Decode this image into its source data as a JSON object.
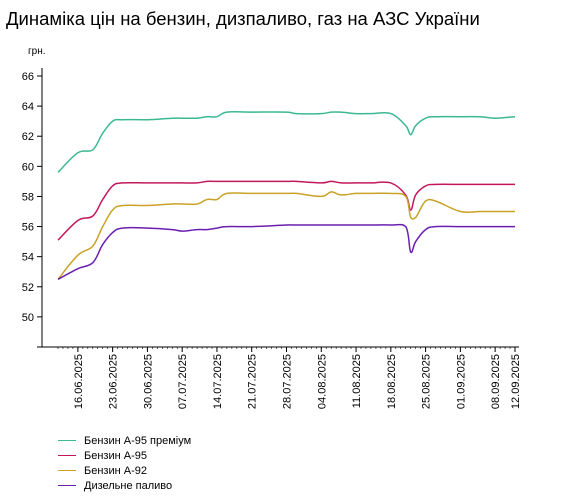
{
  "title": "Динаміка цін на бензин, дизпаливо, газ на АЗС України",
  "chart_data": {
    "type": "line",
    "title": "Динаміка цін на бензин, дизпаливо, газ на АЗС України",
    "ylabel": "грн.",
    "xlabel": "",
    "ylim": [
      48,
      66
    ],
    "yticks": [
      50,
      52,
      54,
      56,
      58,
      60,
      62,
      64,
      66
    ],
    "grid": false,
    "legend_position": "bottom-left",
    "x_start": "12.06.2025",
    "x_end": "12.09.2025",
    "x": [
      "12.06.2025",
      "16.06.2025",
      "19.06.2025",
      "21.06.2025",
      "23.06.2025",
      "25.06.2025",
      "30.06.2025",
      "05.07.2025",
      "07.07.2025",
      "10.07.2025",
      "12.07.2025",
      "14.07.2025",
      "16.07.2025",
      "21.07.2025",
      "28.07.2025",
      "30.07.2025",
      "04.08.2025",
      "06.08.2025",
      "08.08.2025",
      "11.08.2025",
      "14.08.2025",
      "18.08.2025",
      "21.08.2025",
      "22.08.2025",
      "23.08.2025",
      "25.08.2025",
      "27.08.2025",
      "01.09.2025",
      "05.09.2025",
      "08.09.2025",
      "12.09.2025"
    ],
    "xtick_labels": [
      "16.06.2025",
      "23.06.2025",
      "30.06.2025",
      "07.07.2025",
      "14.07.2025",
      "21.07.2025",
      "28.07.2025",
      "04.08.2025",
      "11.08.2025",
      "18.08.2025",
      "25.08.2025",
      "01.09.2025",
      "08.09.2025",
      "12.09.2025"
    ],
    "series": [
      {
        "name": "Бензин А-95 преміум",
        "color": "#3cb893",
        "values": [
          59.6,
          60.9,
          61.1,
          62.2,
          63.0,
          63.1,
          63.1,
          63.2,
          63.2,
          63.2,
          63.3,
          63.3,
          63.6,
          63.6,
          63.6,
          63.5,
          63.5,
          63.6,
          63.6,
          63.5,
          63.5,
          63.5,
          62.7,
          62.1,
          62.7,
          63.2,
          63.3,
          63.3,
          63.3,
          63.2,
          63.3
        ]
      },
      {
        "name": "Бензин А-95",
        "color": "#c2185b",
        "values": [
          55.1,
          56.4,
          56.7,
          57.8,
          58.7,
          58.9,
          58.9,
          58.9,
          58.9,
          58.9,
          59.0,
          59.0,
          59.0,
          59.0,
          59.0,
          59.0,
          58.9,
          59.0,
          58.9,
          58.9,
          58.9,
          58.9,
          58.1,
          57.1,
          58.1,
          58.7,
          58.8,
          58.8,
          58.8,
          58.8,
          58.8
        ]
      },
      {
        "name": "Бензин А-92",
        "color": "#c9a227",
        "values": [
          52.5,
          54.1,
          54.7,
          56.0,
          57.1,
          57.4,
          57.4,
          57.5,
          57.5,
          57.5,
          57.8,
          57.8,
          58.2,
          58.2,
          58.2,
          58.2,
          58.0,
          58.3,
          58.1,
          58.2,
          58.2,
          58.2,
          58.0,
          56.6,
          56.6,
          57.7,
          57.7,
          57.0,
          57.0,
          57.0,
          57.0
        ]
      },
      {
        "name": "Дизельне паливо",
        "color": "#6a1fb0",
        "values": [
          52.5,
          53.2,
          53.6,
          54.8,
          55.6,
          55.9,
          55.9,
          55.8,
          55.7,
          55.8,
          55.8,
          55.9,
          56.0,
          56.0,
          56.1,
          56.1,
          56.1,
          56.1,
          56.1,
          56.1,
          56.1,
          56.1,
          56.0,
          54.3,
          55.0,
          55.8,
          56.0,
          56.0,
          56.0,
          56.0,
          56.0
        ]
      }
    ]
  }
}
